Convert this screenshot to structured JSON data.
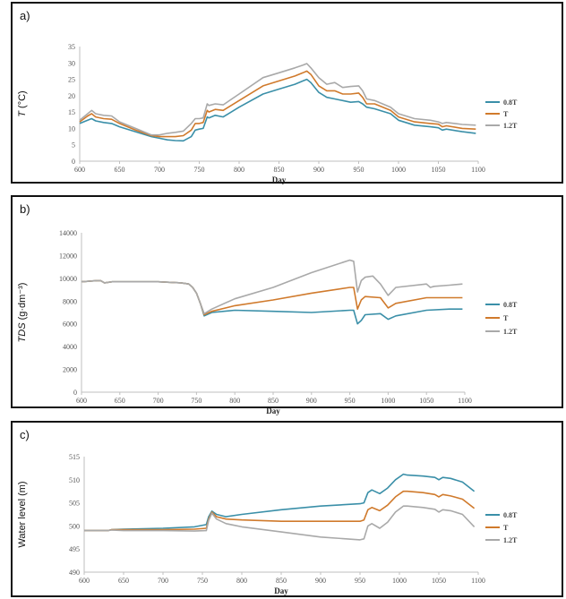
{
  "colors": {
    "s08": "#3a8fa8",
    "s1": "#d07a2c",
    "s12": "#a9a9a9",
    "axis": "#bfbfbf"
  },
  "chart_data": [
    {
      "id": "a",
      "panel_label": "a)",
      "type": "line",
      "xlabel": "Day",
      "ylabel_italic": "T",
      "ylabel_rest": " (°C)",
      "xlim": [
        600,
        1100
      ],
      "ylim": [
        0,
        35
      ],
      "xticks": [
        600,
        650,
        700,
        750,
        800,
        850,
        900,
        950,
        1000,
        1050,
        1100
      ],
      "yticks": [
        0,
        5,
        10,
        15,
        20,
        25,
        30,
        35
      ],
      "series": [
        {
          "name": "0.8T",
          "color": "#3a8fa8",
          "x": [
            600,
            610,
            615,
            620,
            630,
            640,
            650,
            670,
            690,
            700,
            710,
            720,
            730,
            740,
            745,
            750,
            755,
            760,
            762,
            770,
            780,
            800,
            830,
            850,
            870,
            880,
            885,
            890,
            900,
            910,
            920,
            930,
            940,
            950,
            955,
            960,
            970,
            990,
            1000,
            1020,
            1040,
            1050,
            1055,
            1060,
            1080,
            1097
          ],
          "y": [
            11.5,
            12.5,
            13.0,
            12.3,
            11.8,
            11.5,
            10.5,
            9.0,
            7.5,
            7.0,
            6.5,
            6.3,
            6.2,
            7.5,
            9.5,
            9.8,
            10.0,
            13.5,
            13.2,
            14.0,
            13.5,
            16.5,
            20.5,
            22.0,
            23.5,
            24.5,
            25.0,
            24.0,
            21.0,
            19.5,
            19.0,
            18.5,
            18.0,
            18.2,
            17.5,
            16.5,
            16.0,
            14.5,
            12.5,
            11.0,
            10.5,
            10.2,
            9.5,
            9.8,
            9.0,
            8.5
          ]
        },
        {
          "name": "T",
          "color": "#d07a2c",
          "x": [
            600,
            610,
            615,
            620,
            630,
            640,
            650,
            670,
            690,
            700,
            710,
            720,
            730,
            740,
            745,
            750,
            755,
            760,
            762,
            770,
            780,
            800,
            830,
            850,
            870,
            880,
            885,
            890,
            900,
            910,
            920,
            930,
            940,
            950,
            955,
            960,
            970,
            990,
            1000,
            1020,
            1040,
            1050,
            1055,
            1060,
            1080,
            1097
          ],
          "y": [
            12.0,
            13.8,
            14.5,
            13.5,
            13.0,
            12.8,
            11.5,
            9.5,
            7.8,
            7.5,
            7.5,
            7.5,
            7.8,
            9.5,
            11.5,
            11.5,
            11.8,
            15.5,
            15.0,
            15.8,
            15.5,
            18.5,
            23.0,
            24.5,
            26.0,
            27.0,
            27.5,
            26.5,
            23.0,
            21.5,
            21.5,
            20.5,
            20.5,
            20.8,
            19.5,
            17.5,
            17.5,
            15.5,
            13.5,
            12.0,
            11.5,
            11.3,
            10.5,
            10.8,
            10.0,
            9.8
          ]
        },
        {
          "name": "1.2T",
          "color": "#a9a9a9",
          "x": [
            600,
            610,
            615,
            620,
            630,
            640,
            650,
            670,
            690,
            700,
            710,
            720,
            730,
            740,
            745,
            750,
            755,
            760,
            762,
            770,
            780,
            800,
            830,
            850,
            870,
            880,
            885,
            890,
            900,
            910,
            920,
            930,
            940,
            950,
            955,
            960,
            970,
            990,
            1000,
            1020,
            1040,
            1050,
            1055,
            1060,
            1080,
            1097
          ],
          "y": [
            12.5,
            14.5,
            15.5,
            14.5,
            14.0,
            13.8,
            12.0,
            10.0,
            8.0,
            8.0,
            8.5,
            8.8,
            9.2,
            11.5,
            13.0,
            13.0,
            13.2,
            17.5,
            17.0,
            17.5,
            17.2,
            20.5,
            25.5,
            27.0,
            28.5,
            29.3,
            29.8,
            28.5,
            25.5,
            23.5,
            24.0,
            22.5,
            22.8,
            23.0,
            21.5,
            19.0,
            18.5,
            16.5,
            14.5,
            13.0,
            12.5,
            12.0,
            11.5,
            11.8,
            11.2,
            11.0
          ]
        }
      ]
    },
    {
      "id": "b",
      "panel_label": "b)",
      "type": "line",
      "xlabel": "Day",
      "ylabel_italic": "TDS",
      "ylabel_rest": " (g·dm⁻³)",
      "xlim": [
        600,
        1100
      ],
      "ylim": [
        0,
        14000
      ],
      "xticks": [
        600,
        650,
        700,
        750,
        800,
        850,
        900,
        950,
        1000,
        1050,
        1100
      ],
      "yticks": [
        0,
        2000,
        4000,
        6000,
        8000,
        10000,
        12000,
        14000
      ],
      "series": [
        {
          "name": "0.8T",
          "color": "#3a8fa8",
          "x": [
            600,
            620,
            625,
            630,
            640,
            700,
            730,
            740,
            745,
            750,
            755,
            760,
            770,
            800,
            850,
            900,
            950,
            955,
            960,
            965,
            970,
            990,
            1000,
            1010,
            1050,
            1080,
            1097
          ],
          "y": [
            9700,
            9800,
            9800,
            9600,
            9700,
            9700,
            9600,
            9500,
            9200,
            8700,
            7800,
            6700,
            7000,
            7200,
            7100,
            7000,
            7200,
            7200,
            6000,
            6300,
            6800,
            6900,
            6400,
            6700,
            7200,
            7300,
            7300
          ]
        },
        {
          "name": "T",
          "color": "#d07a2c",
          "x": [
            600,
            620,
            625,
            630,
            640,
            700,
            730,
            740,
            745,
            750,
            755,
            760,
            770,
            800,
            850,
            900,
            950,
            955,
            960,
            965,
            970,
            990,
            1000,
            1010,
            1050,
            1080,
            1097
          ],
          "y": [
            9700,
            9800,
            9800,
            9600,
            9700,
            9700,
            9600,
            9500,
            9200,
            8700,
            7800,
            6800,
            7100,
            7600,
            8100,
            8700,
            9200,
            9200,
            7300,
            8100,
            8400,
            8300,
            7400,
            7800,
            8300,
            8300,
            8300
          ]
        },
        {
          "name": "1.2T",
          "color": "#a9a9a9",
          "x": [
            600,
            620,
            625,
            630,
            640,
            700,
            730,
            740,
            745,
            750,
            755,
            760,
            770,
            800,
            850,
            900,
            950,
            955,
            960,
            965,
            970,
            980,
            990,
            1000,
            1010,
            1050,
            1055,
            1060,
            1080,
            1097
          ],
          "y": [
            9700,
            9800,
            9800,
            9600,
            9700,
            9700,
            9600,
            9500,
            9200,
            8700,
            7800,
            6900,
            7300,
            8200,
            9200,
            10500,
            11600,
            11500,
            8800,
            9800,
            10100,
            10200,
            9500,
            8500,
            9200,
            9500,
            9200,
            9300,
            9400,
            9500
          ]
        }
      ]
    },
    {
      "id": "c",
      "panel_label": "c)",
      "type": "line",
      "xlabel": "Day",
      "ylabel_italic": "",
      "ylabel_rest": "Water level (m)",
      "xlim": [
        600,
        1100
      ],
      "ylim": [
        490,
        515
      ],
      "xticks": [
        600,
        650,
        700,
        750,
        800,
        850,
        900,
        950,
        1000,
        1050,
        1100
      ],
      "yticks": [
        490,
        495,
        500,
        505,
        510,
        515
      ],
      "series": [
        {
          "name": "0.8T",
          "color": "#3a8fa8",
          "x": [
            600,
            630,
            635,
            650,
            700,
            740,
            755,
            758,
            762,
            768,
            780,
            800,
            850,
            900,
            950,
            955,
            960,
            965,
            975,
            985,
            995,
            1005,
            1010,
            1030,
            1045,
            1050,
            1055,
            1065,
            1080,
            1095
          ],
          "y": [
            499,
            499,
            499.2,
            499.3,
            499.5,
            499.8,
            500.3,
            502,
            503.2,
            502.5,
            502,
            502.5,
            503.5,
            504.3,
            504.8,
            505,
            507.2,
            507.8,
            507,
            508.2,
            510,
            511.2,
            511,
            510.8,
            510.5,
            510,
            510.5,
            510.3,
            509.5,
            507.5
          ]
        },
        {
          "name": "T",
          "color": "#d07a2c",
          "x": [
            600,
            630,
            635,
            650,
            700,
            740,
            755,
            758,
            762,
            768,
            780,
            800,
            850,
            900,
            950,
            955,
            960,
            965,
            975,
            985,
            995,
            1005,
            1010,
            1030,
            1045,
            1050,
            1055,
            1065,
            1080,
            1095
          ],
          "y": [
            499,
            499,
            499.2,
            499.2,
            499.2,
            499.3,
            499.5,
            501.5,
            503,
            502,
            501.5,
            501.3,
            501,
            501,
            501,
            501.3,
            503.5,
            504,
            503.3,
            504.5,
            506.3,
            507.5,
            507.5,
            507.2,
            506.8,
            506.3,
            506.8,
            506.5,
            505.8,
            503.8
          ]
        },
        {
          "name": "1.2T",
          "color": "#a9a9a9",
          "x": [
            600,
            630,
            635,
            650,
            700,
            740,
            755,
            758,
            762,
            768,
            780,
            800,
            850,
            900,
            950,
            955,
            960,
            965,
            975,
            985,
            995,
            1005,
            1010,
            1030,
            1045,
            1050,
            1055,
            1065,
            1080,
            1095
          ],
          "y": [
            499,
            499,
            499.1,
            499,
            499,
            498.9,
            499,
            501.2,
            502.8,
            501.5,
            500.5,
            499.8,
            498.7,
            497.6,
            497,
            497.2,
            500,
            500.5,
            499.5,
            500.8,
            503,
            504.3,
            504.3,
            504,
            503.6,
            503,
            503.5,
            503.3,
            502.5,
            499.8
          ]
        }
      ]
    }
  ]
}
